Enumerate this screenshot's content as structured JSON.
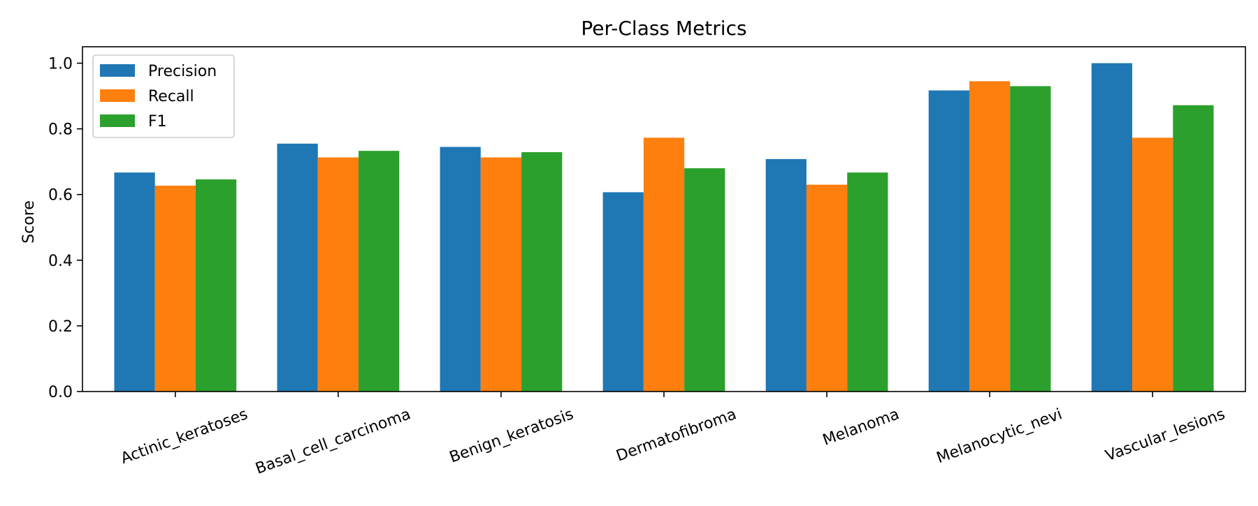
{
  "chart_data": {
    "type": "bar",
    "title": "Per-Class Metrics",
    "xlabel": "",
    "ylabel": "Score",
    "ylim": [
      0,
      1.05
    ],
    "yticks": [
      0.0,
      0.2,
      0.4,
      0.6,
      0.8,
      1.0
    ],
    "ytick_labels": [
      "0.0",
      "0.2",
      "0.4",
      "0.6",
      "0.8",
      "1.0"
    ],
    "categories": [
      "Actinic_keratoses",
      "Basal_cell_carcinoma",
      "Benign_keratosis",
      "Dermatofibroma",
      "Melanoma",
      "Melanocytic_nevi",
      "Vascular_lesions"
    ],
    "series": [
      {
        "name": "Precision",
        "color": "#1f77b4",
        "values": [
          0.667,
          0.755,
          0.745,
          0.607,
          0.708,
          0.917,
          1.0
        ]
      },
      {
        "name": "Recall",
        "color": "#ff7f0e",
        "values": [
          0.627,
          0.713,
          0.713,
          0.773,
          0.63,
          0.945,
          0.773
        ]
      },
      {
        "name": "F1",
        "color": "#2ca02c",
        "values": [
          0.646,
          0.733,
          0.729,
          0.68,
          0.667,
          0.93,
          0.872
        ]
      }
    ],
    "legend_position": "top-left",
    "grid": false
  }
}
